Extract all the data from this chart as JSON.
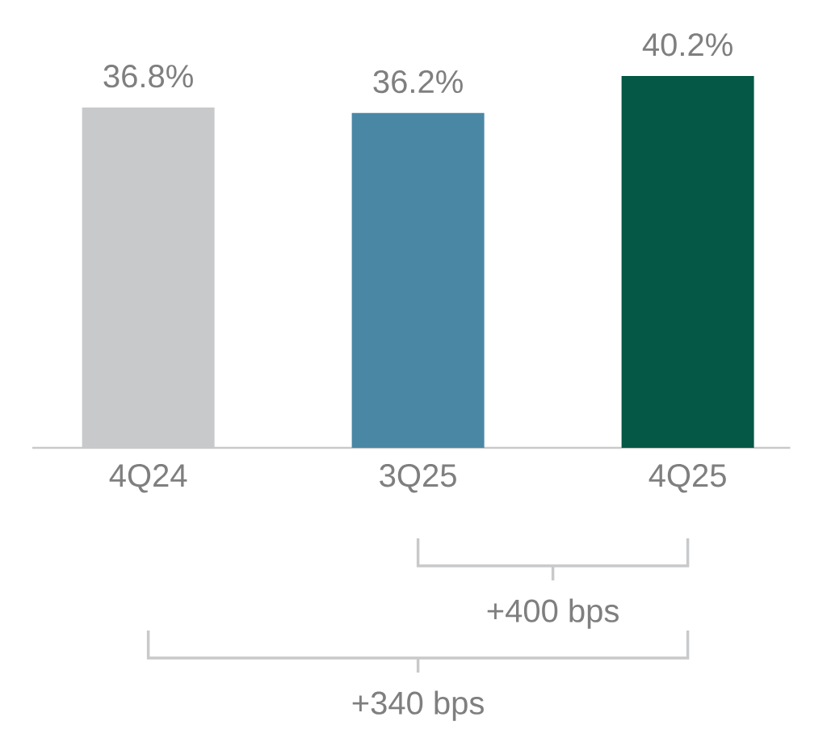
{
  "chart_data": {
    "type": "bar",
    "categories": [
      "4Q24",
      "3Q25",
      "4Q25"
    ],
    "values": [
      36.8,
      36.2,
      40.2
    ],
    "value_labels": [
      "36.8%",
      "36.2%",
      "40.2%"
    ],
    "colors": [
      "#c8c9cb",
      "#4a87a5",
      "#045845"
    ],
    "annotations": [
      "+400 bps",
      "+340 bps"
    ]
  }
}
